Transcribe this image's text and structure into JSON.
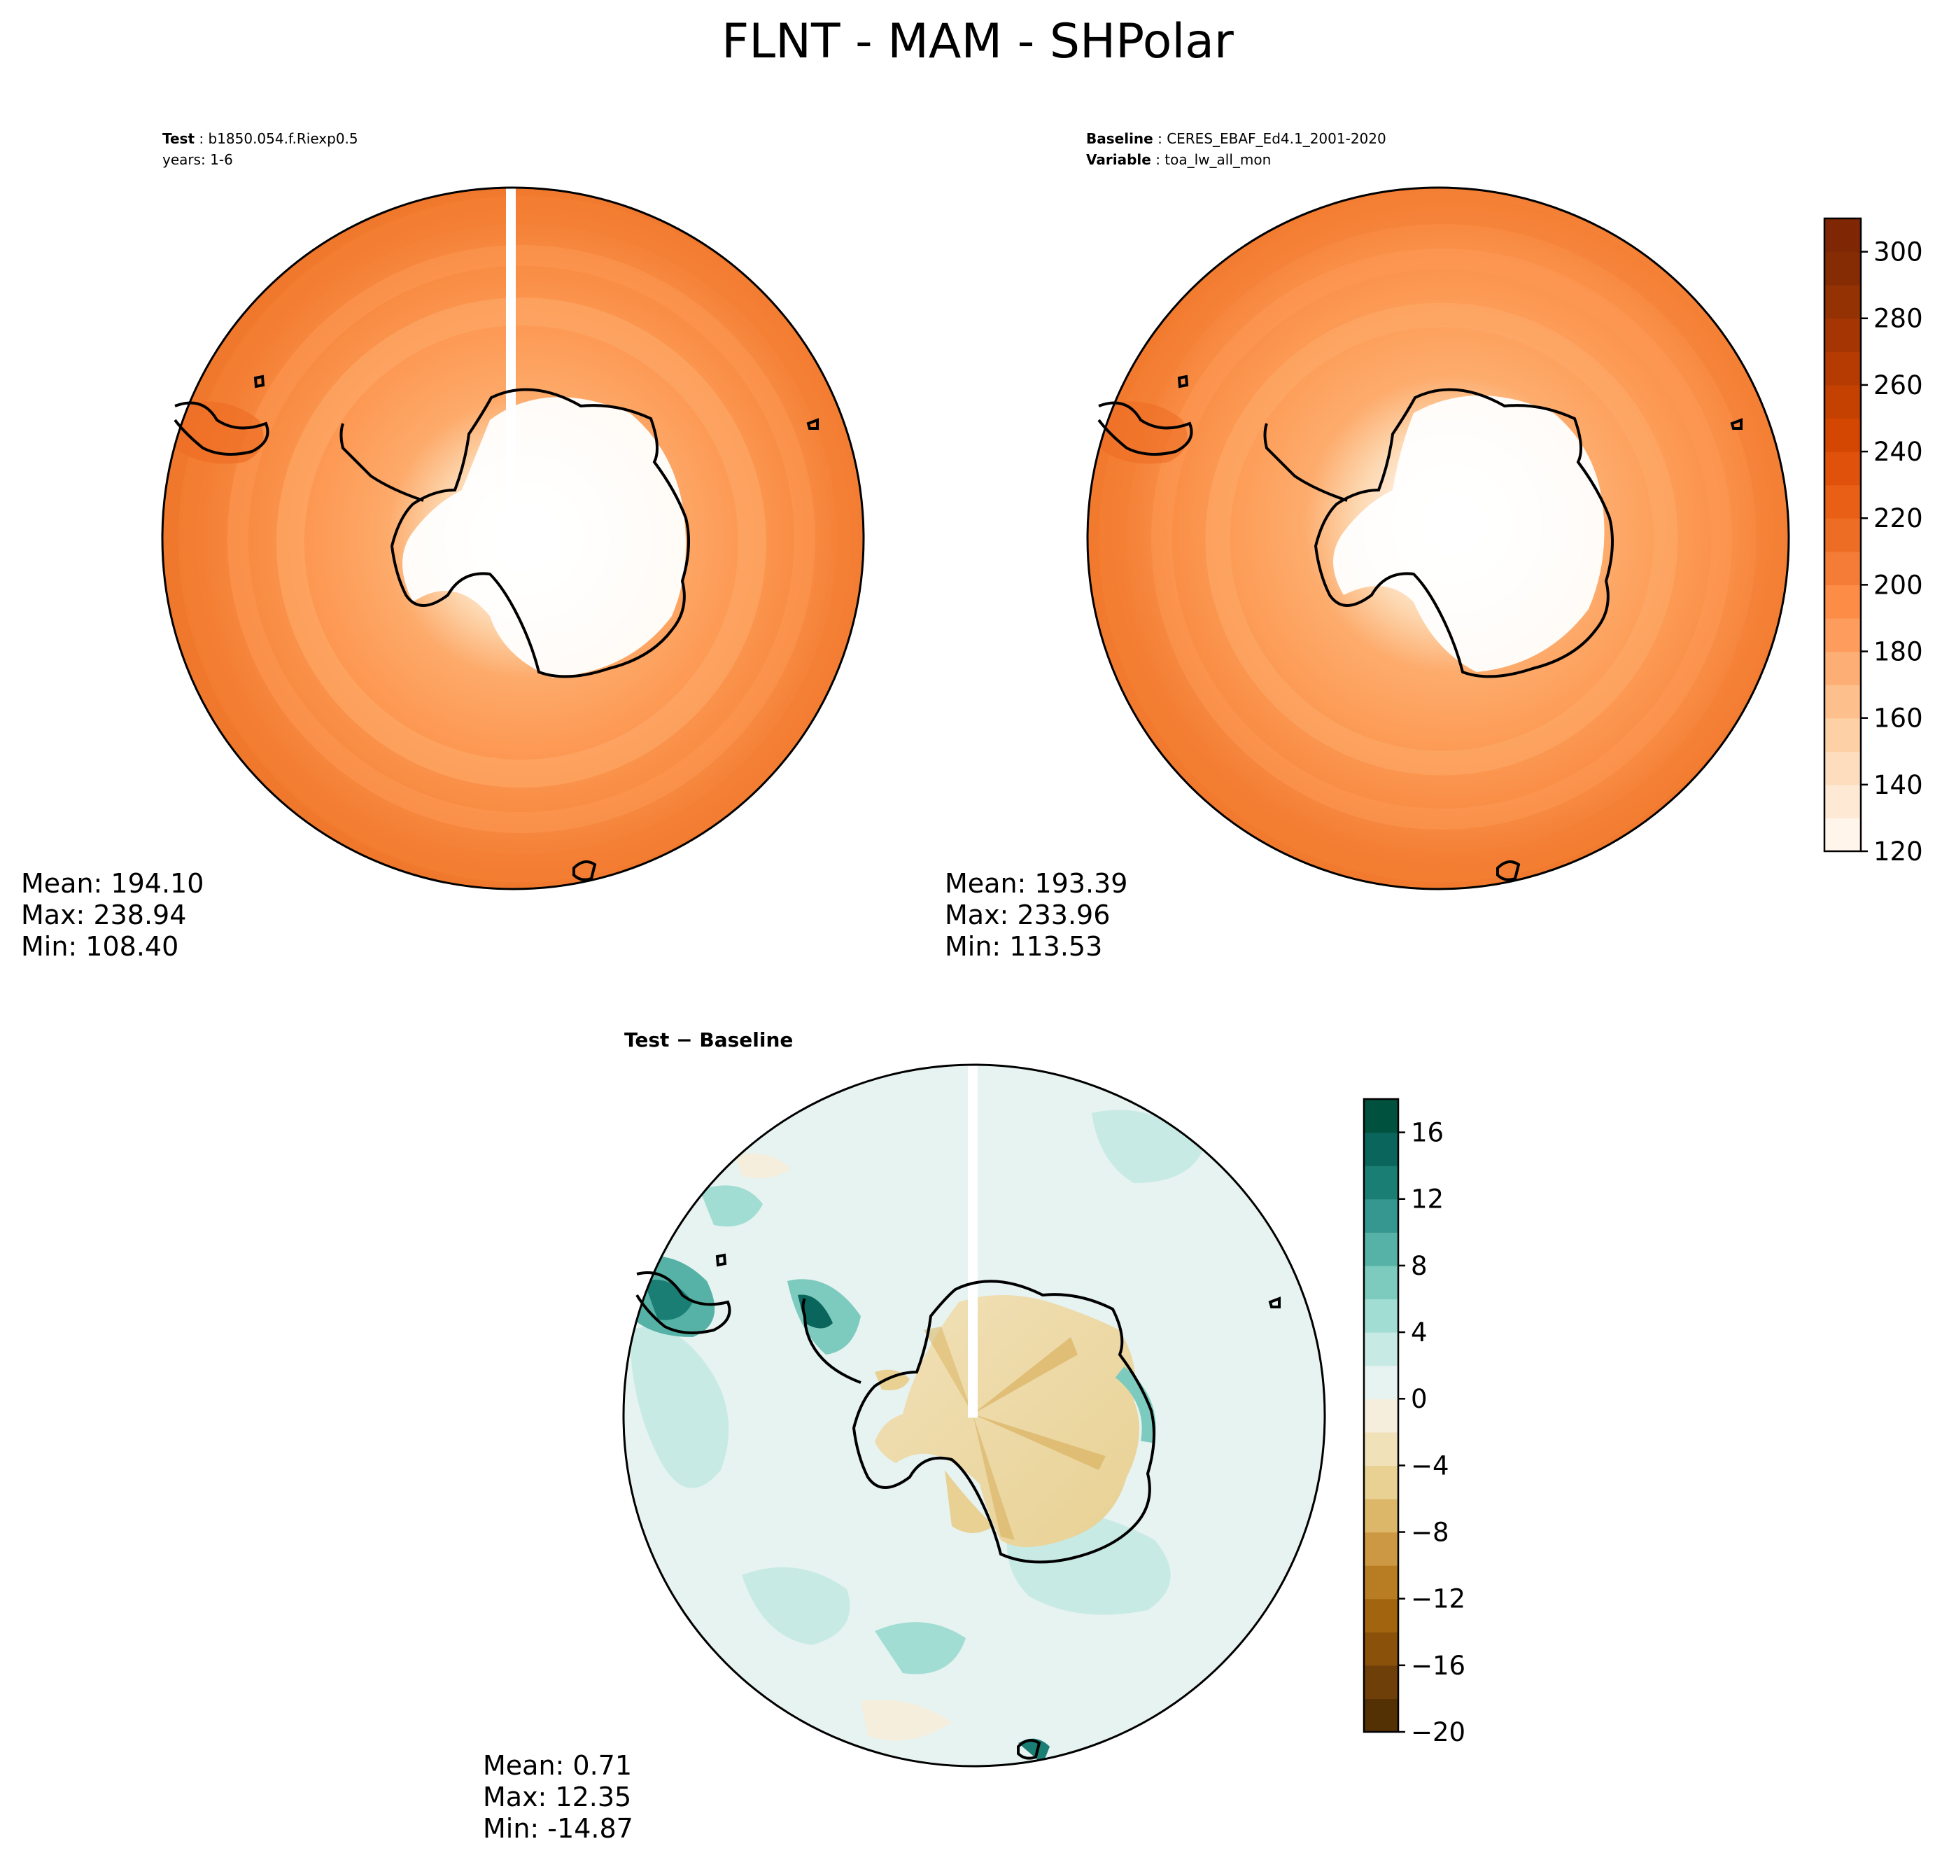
{
  "figure": {
    "title": "FLNT - MAM - SHPolar"
  },
  "panels": {
    "test": {
      "label_key": "Test",
      "label_value": "b1850.054.f.Riexp0.5",
      "line2": "years: 1-6",
      "stats": {
        "mean": "Mean: 194.10",
        "max": "Max: 238.94",
        "min": "Min: 108.40"
      }
    },
    "baseline": {
      "label_key": "Baseline",
      "label_value": "CERES_EBAF_Ed4.1_2001-2020",
      "var_key": "Variable",
      "var_value": "toa_lw_all_mon",
      "stats": {
        "mean": "Mean: 193.39",
        "max": "Max: 233.96",
        "min": "Min: 113.53"
      }
    },
    "diff": {
      "title": "Test − Baseline",
      "stats": {
        "mean": "Mean:  0.71",
        "max": "Max: 12.35",
        "min": "Min: -14.87"
      }
    }
  },
  "chart_data": [
    {
      "type": "heatmap",
      "panel": "test",
      "projection": "south polar stereographic",
      "colormap": "Oranges",
      "stats": {
        "mean": 194.1,
        "max": 238.94,
        "min": 108.4
      }
    },
    {
      "type": "heatmap",
      "panel": "baseline",
      "projection": "south polar stereographic",
      "colormap": "Oranges",
      "stats": {
        "mean": 193.39,
        "max": 233.96,
        "min": 113.53
      }
    },
    {
      "type": "heatmap",
      "panel": "diff",
      "projection": "south polar stereographic",
      "colormap": "BrBG",
      "stats": {
        "mean": 0.71,
        "max": 12.35,
        "min": -14.87
      }
    }
  ],
  "colorbars": {
    "main": {
      "range": [
        120,
        310
      ],
      "levels": [
        120,
        130,
        140,
        150,
        160,
        170,
        180,
        190,
        200,
        210,
        220,
        230,
        240,
        250,
        260,
        270,
        280,
        290,
        300,
        310
      ],
      "colors": [
        "#fff5eb",
        "#fee9d4",
        "#fdddbd",
        "#fdd0a5",
        "#fdc08c",
        "#fdae74",
        "#fd9c5d",
        "#fd8c47",
        "#f57c36",
        "#ee6d25",
        "#e95f16",
        "#e0520c",
        "#d44703",
        "#c54102",
        "#b53b02",
        "#a53603",
        "#953203",
        "#852c04",
        "#7f2704"
      ],
      "ticks": [
        "120",
        "140",
        "160",
        "180",
        "200",
        "220",
        "240",
        "260",
        "280",
        "300"
      ],
      "tick_values": [
        120,
        140,
        160,
        180,
        200,
        220,
        240,
        260,
        280,
        300
      ]
    },
    "diff": {
      "range": [
        -20,
        18
      ],
      "levels": [
        -20,
        -18,
        -16,
        -14,
        -12,
        -10,
        -8,
        -6,
        -4,
        -2,
        0,
        2,
        4,
        6,
        8,
        10,
        12,
        14,
        16,
        18
      ],
      "colors": [
        "#543005",
        "#6e3f08",
        "#8a510b",
        "#a3640f",
        "#b87c22",
        "#cc9843",
        "#dcb769",
        "#e8d193",
        "#f1e1b9",
        "#f5eedd",
        "#e6f3f1",
        "#c8eae5",
        "#a1ddd3",
        "#7ccbbe",
        "#56b2a6",
        "#35978f",
        "#1b7e75",
        "#0a665d",
        "#01513f"
      ],
      "ticks": [
        "16",
        "12",
        "8",
        "4",
        "0",
        "−4",
        "−8",
        "−12",
        "−16",
        "−20"
      ],
      "tick_values": [
        16,
        12,
        8,
        4,
        0,
        -4,
        -8,
        -12,
        -16,
        -20
      ]
    }
  }
}
